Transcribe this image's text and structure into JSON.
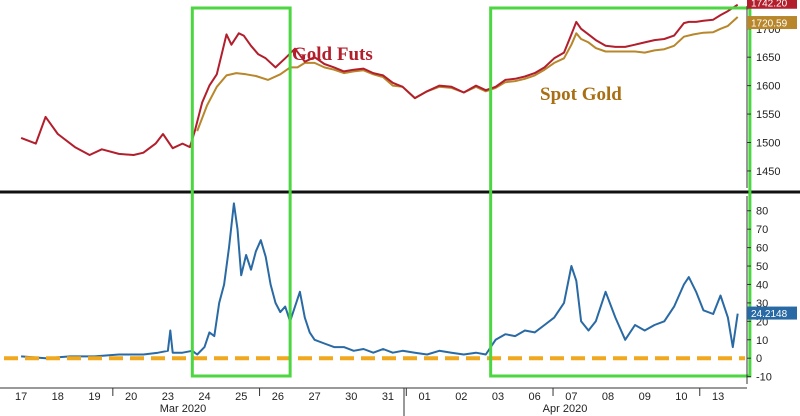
{
  "chart_data": [
    {
      "type": "line",
      "panel": "top",
      "ylim": [
        1420,
        1740
      ],
      "yticks": [
        1450,
        1500,
        1550,
        1600,
        1650,
        1700
      ],
      "grid": false,
      "series": [
        {
          "name": "Gold Futs",
          "color": "#b21e2c",
          "last_label": "1742.20",
          "points": [
            [
              0,
              1508
            ],
            [
              0.6,
              1498
            ],
            [
              1.0,
              1545
            ],
            [
              1.5,
              1515
            ],
            [
              2.2,
              1492
            ],
            [
              2.8,
              1478
            ],
            [
              3.3,
              1488
            ],
            [
              4.0,
              1480
            ],
            [
              4.6,
              1478
            ],
            [
              5.0,
              1482
            ],
            [
              5.5,
              1498
            ],
            [
              5.8,
              1515
            ],
            [
              6.2,
              1490
            ],
            [
              6.6,
              1498
            ],
            [
              6.9,
              1492
            ],
            [
              7.1,
              1520
            ],
            [
              7.4,
              1570
            ],
            [
              7.7,
              1600
            ],
            [
              8.0,
              1620
            ],
            [
              8.2,
              1655
            ],
            [
              8.4,
              1690
            ],
            [
              8.6,
              1672
            ],
            [
              8.9,
              1692
            ],
            [
              9.1,
              1688
            ],
            [
              9.4,
              1670
            ],
            [
              9.7,
              1655
            ],
            [
              10.0,
              1648
            ],
            [
              10.4,
              1632
            ],
            [
              10.8,
              1648
            ],
            [
              11.2,
              1665
            ],
            [
              11.6,
              1642
            ],
            [
              12.0,
              1650
            ],
            [
              12.4,
              1638
            ],
            [
              12.8,
              1632
            ],
            [
              13.2,
              1625
            ],
            [
              13.6,
              1628
            ],
            [
              14.0,
              1630
            ],
            [
              14.4,
              1622
            ],
            [
              14.8,
              1618
            ],
            [
              15.2,
              1605
            ],
            [
              15.6,
              1598
            ],
            [
              16.1,
              1578
            ],
            [
              16.6,
              1590
            ],
            [
              17.1,
              1600
            ],
            [
              17.6,
              1598
            ],
            [
              18.1,
              1588
            ],
            [
              18.6,
              1600
            ],
            [
              19.0,
              1592
            ],
            [
              19.4,
              1598
            ],
            [
              19.8,
              1610
            ],
            [
              20.2,
              1612
            ],
            [
              20.6,
              1616
            ],
            [
              21.0,
              1622
            ],
            [
              21.4,
              1632
            ],
            [
              21.8,
              1648
            ],
            [
              22.2,
              1658
            ],
            [
              22.5,
              1690
            ],
            [
              22.7,
              1712
            ],
            [
              22.9,
              1700
            ],
            [
              23.2,
              1690
            ],
            [
              23.5,
              1680
            ],
            [
              23.9,
              1670
            ],
            [
              24.3,
              1668
            ],
            [
              24.7,
              1668
            ],
            [
              25.1,
              1672
            ],
            [
              25.5,
              1676
            ],
            [
              25.9,
              1680
            ],
            [
              26.3,
              1682
            ],
            [
              26.7,
              1688
            ],
            [
              27.1,
              1710
            ],
            [
              27.3,
              1712
            ],
            [
              27.6,
              1712
            ],
            [
              27.9,
              1714
            ],
            [
              28.3,
              1716
            ],
            [
              28.6,
              1724
            ],
            [
              28.9,
              1731
            ],
            [
              29.3,
              1742.2
            ]
          ]
        },
        {
          "name": "Spot Gold",
          "color": "#b8862b",
          "last_label": "1720.59",
          "points": [
            [
              7.2,
              1520
            ],
            [
              7.6,
              1565
            ],
            [
              8.0,
              1598
            ],
            [
              8.4,
              1618
            ],
            [
              8.8,
              1622
            ],
            [
              9.2,
              1620
            ],
            [
              9.6,
              1617
            ],
            [
              10.1,
              1610
            ],
            [
              10.6,
              1620
            ],
            [
              11.0,
              1632
            ],
            [
              11.3,
              1632
            ],
            [
              11.6,
              1640
            ],
            [
              12.0,
              1640
            ],
            [
              12.4,
              1632
            ],
            [
              12.8,
              1628
            ],
            [
              13.2,
              1622
            ],
            [
              13.6,
              1625
            ],
            [
              14.0,
              1627
            ],
            [
              14.4,
              1620
            ],
            [
              14.8,
              1615
            ],
            [
              15.2,
              1600
            ],
            [
              15.6,
              1598
            ],
            [
              16.1,
              1578
            ],
            [
              16.6,
              1590
            ],
            [
              17.1,
              1598
            ],
            [
              17.6,
              1596
            ],
            [
              18.1,
              1588
            ],
            [
              18.6,
              1598
            ],
            [
              19.0,
              1590
            ],
            [
              19.4,
              1596
            ],
            [
              19.8,
              1606
            ],
            [
              20.2,
              1608
            ],
            [
              20.6,
              1612
            ],
            [
              21.0,
              1618
            ],
            [
              21.4,
              1628
            ],
            [
              21.8,
              1640
            ],
            [
              22.2,
              1648
            ],
            [
              22.5,
              1672
            ],
            [
              22.7,
              1692
            ],
            [
              22.9,
              1682
            ],
            [
              23.2,
              1676
            ],
            [
              23.5,
              1666
            ],
            [
              23.9,
              1660
            ],
            [
              24.3,
              1660
            ],
            [
              24.7,
              1660
            ],
            [
              25.1,
              1660
            ],
            [
              25.5,
              1658
            ],
            [
              25.9,
              1662
            ],
            [
              26.3,
              1664
            ],
            [
              26.7,
              1670
            ],
            [
              27.1,
              1686
            ],
            [
              27.5,
              1690
            ],
            [
              27.9,
              1693
            ],
            [
              28.3,
              1694
            ],
            [
              28.6,
              1700
            ],
            [
              28.9,
              1705
            ],
            [
              29.3,
              1720.59
            ]
          ]
        }
      ],
      "annotations": [
        {
          "text": "Gold Futs",
          "color": "#b21e2c"
        },
        {
          "text": "Spot Gold",
          "color": "#a86f13"
        }
      ]
    },
    {
      "type": "line",
      "panel": "bottom",
      "ylim": [
        -14,
        88
      ],
      "yticks": [
        -10,
        0,
        10,
        20,
        30,
        40,
        50,
        60,
        70,
        80
      ],
      "grid": false,
      "reference_line": {
        "value": 0,
        "color": "#f0a81e",
        "style": "dashed"
      },
      "series": [
        {
          "name": "",
          "color": "#2a6aa4",
          "last_label": "24.2148",
          "points": [
            [
              0,
              1
            ],
            [
              1,
              0
            ],
            [
              2,
              1
            ],
            [
              3,
              1
            ],
            [
              4,
              2
            ],
            [
              5,
              2
            ],
            [
              5.6,
              3
            ],
            [
              6.0,
              4
            ],
            [
              6.1,
              15
            ],
            [
              6.2,
              3
            ],
            [
              6.6,
              3
            ],
            [
              7.0,
              4
            ],
            [
              7.2,
              2
            ],
            [
              7.5,
              6
            ],
            [
              7.7,
              14
            ],
            [
              7.9,
              12
            ],
            [
              8.1,
              30
            ],
            [
              8.3,
              40
            ],
            [
              8.5,
              60
            ],
            [
              8.7,
              84
            ],
            [
              8.85,
              70
            ],
            [
              9.0,
              45
            ],
            [
              9.2,
              56
            ],
            [
              9.4,
              48
            ],
            [
              9.6,
              58
            ],
            [
              9.8,
              64
            ],
            [
              10.0,
              55
            ],
            [
              10.2,
              40
            ],
            [
              10.4,
              30
            ],
            [
              10.6,
              25
            ],
            [
              10.8,
              28
            ],
            [
              11.0,
              20
            ],
            [
              11.2,
              28
            ],
            [
              11.4,
              36
            ],
            [
              11.6,
              22
            ],
            [
              11.8,
              14
            ],
            [
              12.0,
              10
            ],
            [
              12.4,
              8
            ],
            [
              12.8,
              6
            ],
            [
              13.2,
              6
            ],
            [
              13.6,
              4
            ],
            [
              14.0,
              5
            ],
            [
              14.4,
              3
            ],
            [
              14.8,
              5
            ],
            [
              15.2,
              3
            ],
            [
              15.6,
              4
            ],
            [
              16.1,
              3
            ],
            [
              16.6,
              2
            ],
            [
              17.1,
              4
            ],
            [
              17.6,
              3
            ],
            [
              18.1,
              2
            ],
            [
              18.6,
              3
            ],
            [
              19.0,
              2
            ],
            [
              19.4,
              10
            ],
            [
              19.8,
              13
            ],
            [
              20.2,
              12
            ],
            [
              20.6,
              15
            ],
            [
              21.0,
              14
            ],
            [
              21.4,
              18
            ],
            [
              21.8,
              22
            ],
            [
              22.2,
              30
            ],
            [
              22.5,
              50
            ],
            [
              22.7,
              42
            ],
            [
              22.9,
              20
            ],
            [
              23.2,
              15
            ],
            [
              23.5,
              20
            ],
            [
              23.9,
              36
            ],
            [
              24.3,
              22
            ],
            [
              24.7,
              10
            ],
            [
              25.1,
              18
            ],
            [
              25.5,
              15
            ],
            [
              25.9,
              18
            ],
            [
              26.3,
              20
            ],
            [
              26.7,
              28
            ],
            [
              27.1,
              40
            ],
            [
              27.3,
              44
            ],
            [
              27.6,
              36
            ],
            [
              27.9,
              26
            ],
            [
              28.3,
              24
            ],
            [
              28.6,
              34
            ],
            [
              28.9,
              22
            ],
            [
              29.1,
              6
            ],
            [
              29.3,
              24.2148
            ]
          ]
        }
      ]
    }
  ],
  "x_axis": {
    "ticks": [
      "17",
      "18",
      "19",
      "20",
      "23",
      "24",
      "25",
      "26",
      "27",
      "30",
      "31",
      "01",
      "02",
      "03",
      "06",
      "07",
      "08",
      "09",
      "10",
      "13"
    ],
    "months": [
      "Mar 2020",
      "Apr 2020"
    ]
  },
  "highlight_boxes": [
    {
      "x_from": 7.0,
      "x_to": 11.0,
      "color": "#4cd641"
    },
    {
      "x_from": 19.2,
      "x_to": 29.8,
      "color": "#4cd641"
    }
  ]
}
